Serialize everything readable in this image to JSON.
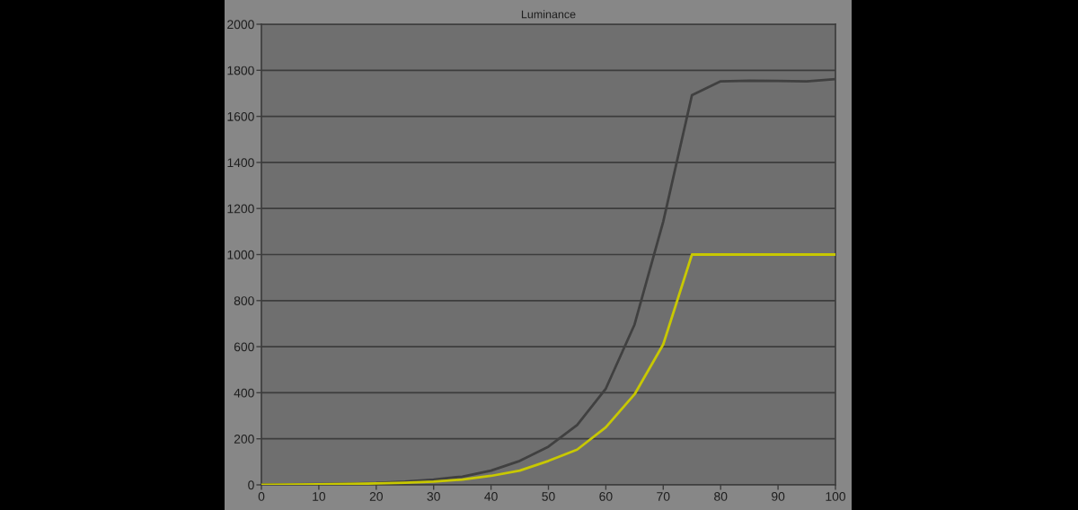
{
  "chart_data": {
    "type": "line",
    "title": "Luminance",
    "x": [
      0,
      5,
      10,
      15,
      20,
      25,
      30,
      35,
      40,
      45,
      50,
      55,
      60,
      65,
      70,
      75,
      80,
      85,
      90,
      95,
      100
    ],
    "series": [
      {
        "color": "#404040",
        "values": [
          1,
          2,
          3,
          5,
          8,
          14,
          23,
          36,
          62,
          104,
          166,
          260,
          418,
          696,
          1143,
          1692,
          1752,
          1755,
          1754,
          1752,
          1762
        ]
      },
      {
        "color": "#c8c800",
        "values": [
          0,
          1,
          2,
          4,
          6,
          9,
          14,
          23,
          39,
          62,
          104,
          153,
          250,
          393,
          610,
          1000,
          1000,
          1000,
          1000,
          1000,
          1000
        ]
      }
    ],
    "xlim": [
      0,
      100
    ],
    "xticks": [
      0,
      10,
      20,
      30,
      40,
      50,
      60,
      70,
      80,
      90,
      100
    ],
    "ylim": [
      0,
      2000
    ],
    "yticks": [
      0,
      200,
      400,
      600,
      800,
      1000,
      1200,
      1400,
      1600,
      1800,
      2000
    ],
    "grid": "y",
    "legend": false,
    "marker": "none",
    "line_style": "solid"
  }
}
